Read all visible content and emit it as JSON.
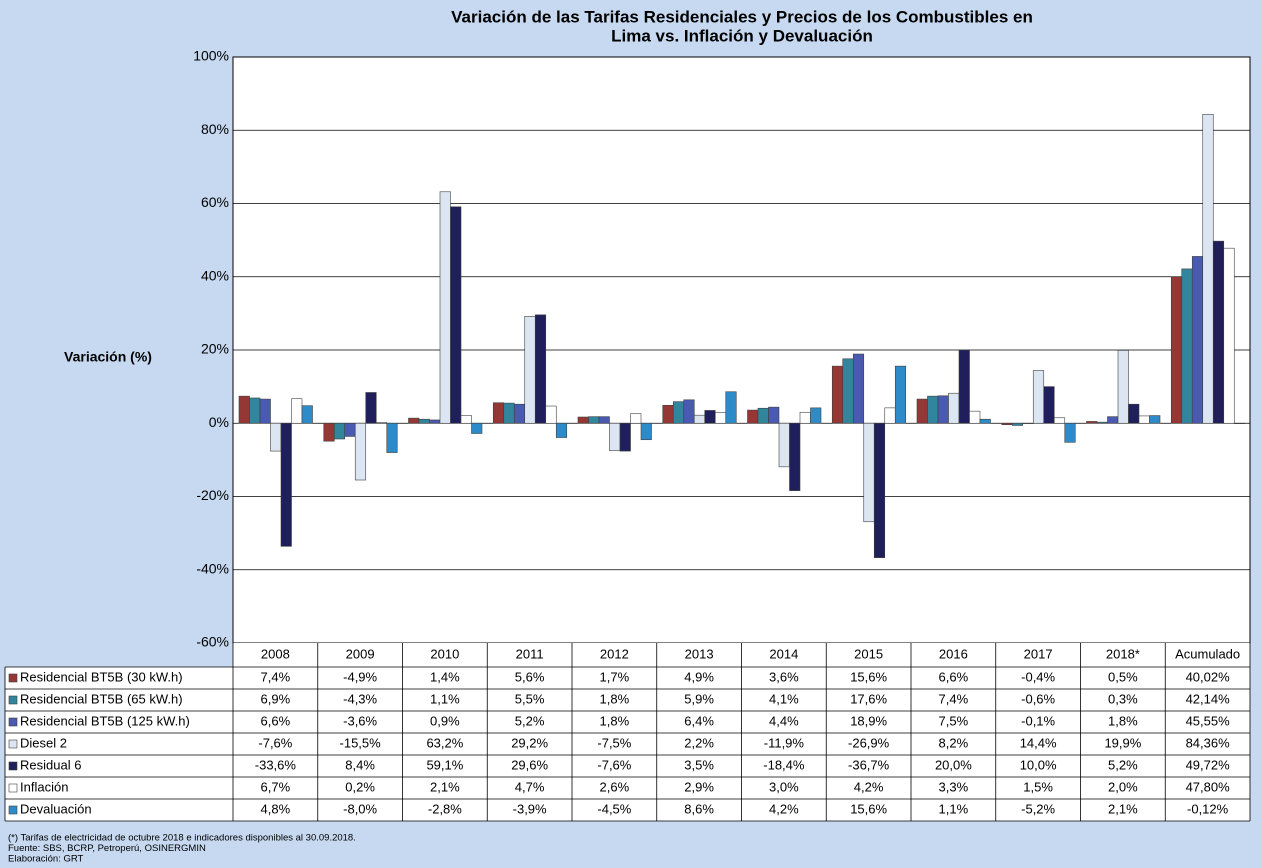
{
  "chart_data": {
    "type": "bar",
    "title": [
      "Variación de las Tarifas Residenciales y Precios de los Combustibles en",
      "Lima vs. Inflación y Devaluación"
    ],
    "y_label": "Variación (%)",
    "categories": [
      "2008",
      "2009",
      "2010",
      "2011",
      "2012",
      "2013",
      "2014",
      "2015",
      "2016",
      "2017",
      "2018*",
      "Acumulado"
    ],
    "ylim": [
      -60,
      100
    ],
    "yticks": [
      {
        "value": -60,
        "label": "-60%"
      },
      {
        "value": -40,
        "label": "-40%"
      },
      {
        "value": -20,
        "label": "-20%"
      },
      {
        "value": 0,
        "label": "0%"
      },
      {
        "value": 20,
        "label": "20%"
      },
      {
        "value": 40,
        "label": "40%"
      },
      {
        "value": 60,
        "label": "60%"
      },
      {
        "value": 80,
        "label": "80%"
      },
      {
        "value": 100,
        "label": "100%"
      }
    ],
    "grid": true,
    "series": [
      {
        "name": "Residencial BT5B (30 kW.h)",
        "color": "#953735",
        "values": [
          7.4,
          -4.9,
          1.4,
          5.6,
          1.7,
          4.9,
          3.6,
          15.6,
          6.6,
          -0.4,
          0.5,
          40.02
        ],
        "value_labels": [
          "7,4%",
          "-4,9%",
          "1,4%",
          "5,6%",
          "1,7%",
          "4,9%",
          "3,6%",
          "15,6%",
          "6,6%",
          "-0,4%",
          "0,5%",
          "40,02%"
        ]
      },
      {
        "name": "Residencial BT5B (65 kW.h)",
        "color": "#31859c",
        "values": [
          6.9,
          -4.3,
          1.1,
          5.5,
          1.8,
          5.9,
          4.1,
          17.6,
          7.4,
          -0.6,
          0.3,
          42.14
        ],
        "value_labels": [
          "6,9%",
          "-4,3%",
          "1,1%",
          "5,5%",
          "1,8%",
          "5,9%",
          "4,1%",
          "17,6%",
          "7,4%",
          "-0,6%",
          "0,3%",
          "42,14%"
        ]
      },
      {
        "name": "Residencial BT5B (125 kW.h)",
        "color": "#4a5ab0",
        "values": [
          6.6,
          -3.6,
          0.9,
          5.2,
          1.8,
          6.4,
          4.4,
          18.9,
          7.5,
          -0.1,
          1.8,
          45.55
        ],
        "value_labels": [
          "6,6%",
          "-3,6%",
          "0,9%",
          "5,2%",
          "1,8%",
          "6,4%",
          "4,4%",
          "18,9%",
          "7,5%",
          "-0,1%",
          "1,8%",
          "45,55%"
        ]
      },
      {
        "name": "Diesel 2",
        "color": "#dce6f2",
        "values": [
          -7.6,
          -15.5,
          63.2,
          29.2,
          -7.5,
          2.2,
          -11.9,
          -26.9,
          8.2,
          14.4,
          19.9,
          84.36
        ],
        "value_labels": [
          "-7,6%",
          "-15,5%",
          "63,2%",
          "29,2%",
          "-7,5%",
          "2,2%",
          "-11,9%",
          "-26,9%",
          "8,2%",
          "14,4%",
          "19,9%",
          "84,36%"
        ]
      },
      {
        "name": "Residual 6",
        "color": "#1f1f5c",
        "values": [
          -33.6,
          8.4,
          59.1,
          29.6,
          -7.6,
          3.5,
          -18.4,
          -36.7,
          20.0,
          10.0,
          5.2,
          49.72
        ],
        "value_labels": [
          "-33,6%",
          "8,4%",
          "59,1%",
          "29,6%",
          "-7,6%",
          "3,5%",
          "-18,4%",
          "-36,7%",
          "20,0%",
          "10,0%",
          "5,2%",
          "49,72%"
        ]
      },
      {
        "name": "Inflación",
        "color": "#ffffff",
        "values": [
          6.7,
          0.2,
          2.1,
          4.7,
          2.6,
          2.9,
          3.0,
          4.2,
          3.3,
          1.5,
          2.0,
          47.8
        ],
        "value_labels": [
          "6,7%",
          "0,2%",
          "2,1%",
          "4,7%",
          "2,6%",
          "2,9%",
          "3,0%",
          "4,2%",
          "3,3%",
          "1,5%",
          "2,0%",
          "47,80%"
        ]
      },
      {
        "name": "Devaluación",
        "color": "#2e8bc9",
        "values": [
          4.8,
          -8.0,
          -2.8,
          -3.9,
          -4.5,
          8.6,
          4.2,
          15.6,
          1.1,
          -5.2,
          2.1,
          -0.12
        ],
        "value_labels": [
          "4,8%",
          "-8,0%",
          "-2,8%",
          "-3,9%",
          "-4,5%",
          "8,6%",
          "4,2%",
          "15,6%",
          "1,1%",
          "-5,2%",
          "2,1%",
          "-0,12%"
        ]
      }
    ],
    "notes": [
      "(*) Tarifas de electricidad de octubre 2018 e indicadores disponibles al 30.09.2018.",
      "Fuente: SBS, BCRP, Petroperú, OSINERGMIN",
      "Elaboración: GRT"
    ]
  }
}
